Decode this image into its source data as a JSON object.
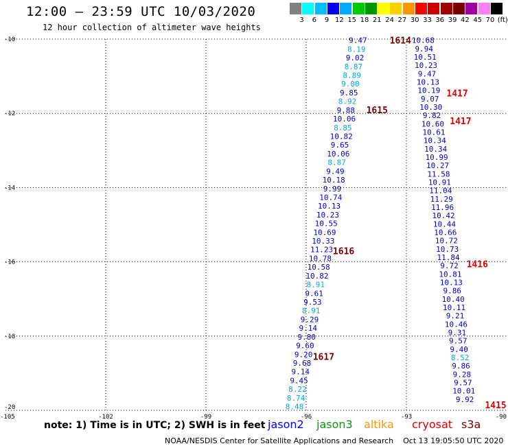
{
  "header": {
    "title": "12:00 – 23:59 UTC 10/03/2020",
    "subtitle": "12 hour collection of altimeter wave heights"
  },
  "scale": {
    "labels": [
      "3",
      "6",
      "9",
      "12",
      "15",
      "18",
      "21",
      "24",
      "27",
      "30",
      "33",
      "36",
      "39",
      "42",
      "45",
      "70",
      "(ft)"
    ],
    "colors": [
      "#808080",
      "#00ffff",
      "#00bfff",
      "#0000ff",
      "#00aaff",
      "#00c800",
      "#009600",
      "#ffff00",
      "#ffd000",
      "#ff9600",
      "#ff0000",
      "#d00000",
      "#a00000",
      "#7a0000",
      "#a000a0",
      "#ff80ff",
      "#000000"
    ]
  },
  "footer": {
    "note": "note: 1) Time is in UTC; 2) SWH is in feet",
    "satellites": [
      {
        "name": "jason2",
        "color": "#0000ff"
      },
      {
        "name": "jason3",
        "color": "#00a000"
      },
      {
        "name": "altika",
        "color": "#ff9600"
      },
      {
        "name": "cryosat",
        "color": "#e00000"
      },
      {
        "name": "s3a",
        "color": "#7a0000"
      }
    ],
    "credit": "NOAA/NESDIS Center for Satellite Applications and Research    Oct 13 19:05:50 UTC 2020"
  },
  "chart_data": {
    "type": "scatter",
    "xlim": [
      -105,
      -90
    ],
    "ylim": [
      -20,
      -10
    ],
    "x_ticks": [
      "-105",
      "-102",
      "-99",
      "-96",
      "-93",
      "-90"
    ],
    "y_ticks": [
      "-10",
      "-12",
      "-14",
      "-16",
      "-18",
      "-20"
    ],
    "grid": true,
    "colors": {
      "jason2": "#0000cc",
      "cyan": "#00aadd",
      "s3a": "#7a0000",
      "cryosat": "#e00000"
    },
    "tracks": [
      {
        "name": "west",
        "x_start": -94.45,
        "y_start": -10.03,
        "x_end": -96.35,
        "y_end": -19.9,
        "values": [
          "9.47",
          "8.19",
          "9.02",
          "8.87",
          "8.89",
          "9.00",
          "9.85",
          "8.92",
          "9.88",
          "10.06",
          "8.85",
          "10.82",
          "9.65",
          "10.06",
          "8.87",
          "9.49",
          "10.18",
          "9.99",
          "10.74",
          "10.13",
          "10.23",
          "10.55",
          "10.69",
          "10.33",
          "11.23",
          "10.78",
          "10.58",
          "10.82",
          "8.91",
          "9.61",
          "9.53",
          "8.91",
          "9.29",
          "9.14",
          "9.80",
          "9.60",
          "9.20",
          "9.68",
          "9.14",
          "9.45",
          "8.22",
          "8.74",
          "8.48"
        ],
        "cyan": [
          1,
          3,
          4,
          5,
          7,
          10,
          14,
          28,
          31,
          40,
          41,
          42
        ]
      },
      {
        "name": "east",
        "x_start": -92.5,
        "y_start": -10.03,
        "x_end": -91.25,
        "y_end": -19.7,
        "values": [
          "10.68",
          "9.94",
          "10.51",
          "10.23",
          "9.47",
          "10.13",
          "10.19",
          "9.07",
          "10.30",
          "9.82",
          "10.60",
          "10.61",
          "10.34",
          "10.34",
          "10.99",
          "10.27",
          "11.58",
          "10.91",
          "11.04",
          "11.29",
          "11.96",
          "10.42",
          "10.44",
          "10.66",
          "10.72",
          "10.73",
          "11.84",
          "9.72",
          "10.81",
          "10.13",
          "9.86",
          "10.40",
          "10.11",
          "9.21",
          "10.46",
          "9.31",
          "9.57",
          "9.40",
          "8.52",
          "9.86",
          "9.28",
          "9.57",
          "10.01",
          "9.92"
        ],
        "cyan": [
          38
        ]
      }
    ],
    "time_labels": [
      {
        "text": "1614",
        "x": -93.5,
        "y": -10.03,
        "color": "s3a"
      },
      {
        "text": "1615",
        "x": -94.2,
        "y": -11.9,
        "color": "s3a"
      },
      {
        "text": "1616",
        "x": -95.2,
        "y": -15.7,
        "color": "s3a"
      },
      {
        "text": "1617",
        "x": -95.8,
        "y": -18.55,
        "color": "s3a"
      },
      {
        "text": "1417",
        "x": -91.8,
        "y": -11.45,
        "color": "cryosat"
      },
      {
        "text": "1417",
        "x": -91.7,
        "y": -12.2,
        "color": "cryosat"
      },
      {
        "text": "1416",
        "x": -91.2,
        "y": -16.05,
        "color": "cryosat"
      },
      {
        "text": "1415",
        "x": -90.65,
        "y": -19.85,
        "color": "cryosat"
      }
    ]
  }
}
